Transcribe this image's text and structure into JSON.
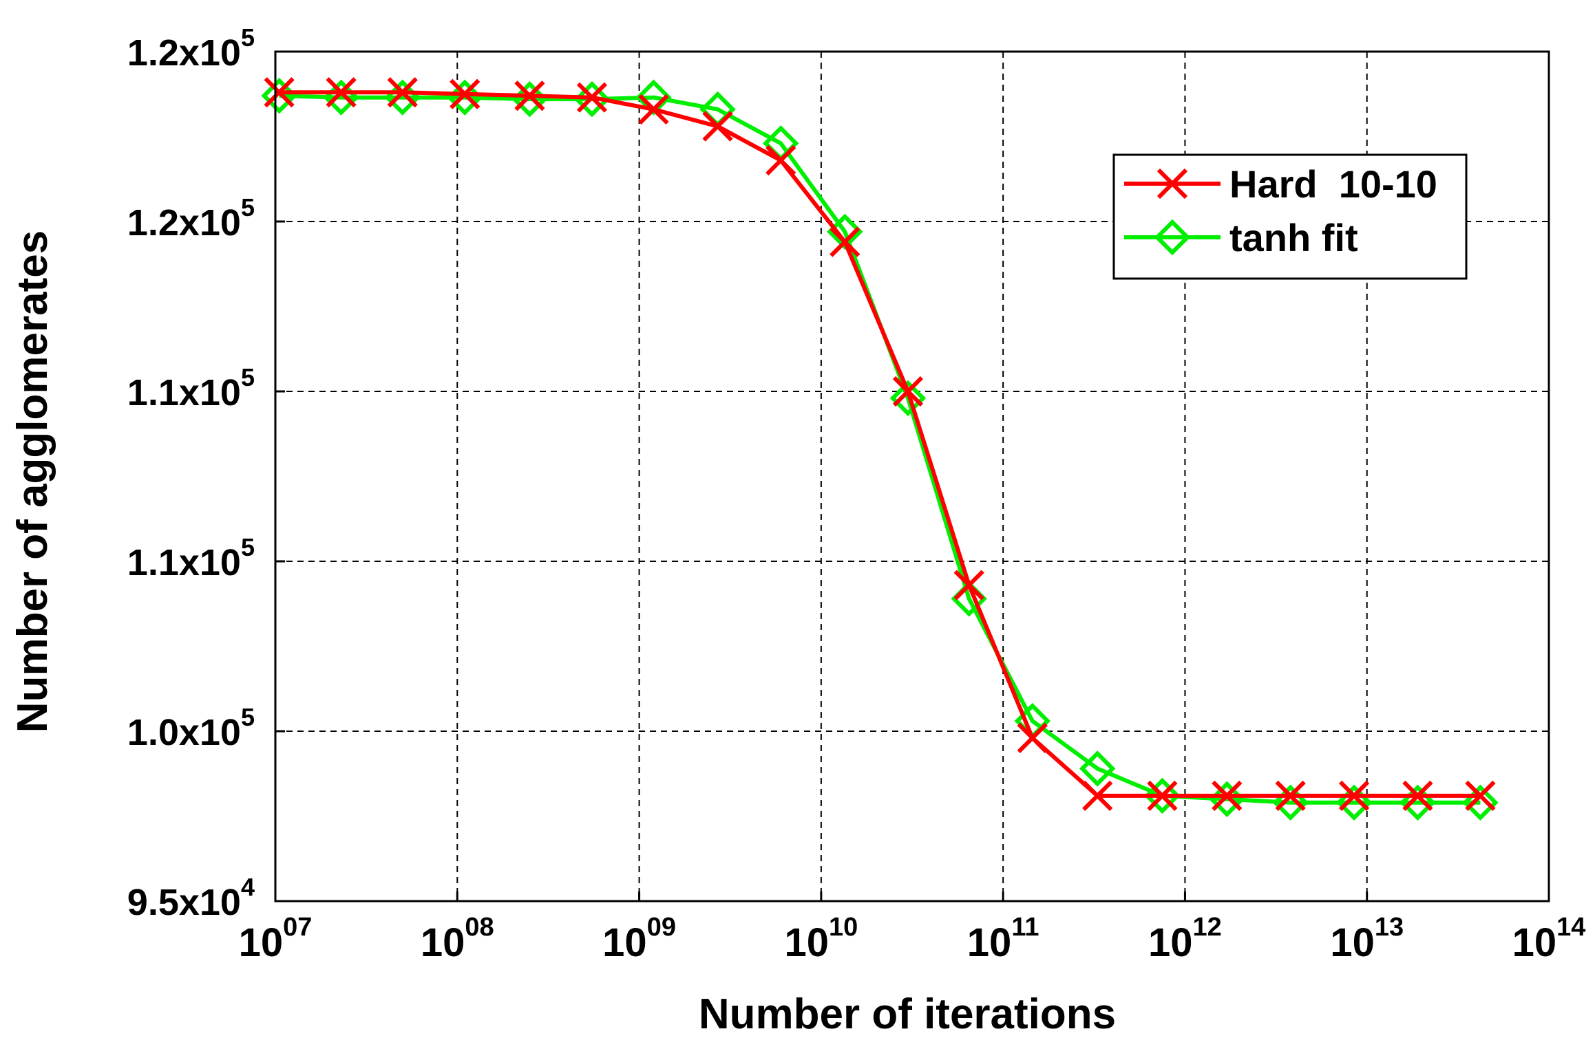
{
  "chart_data": {
    "type": "line",
    "xlabel": "Number of iterations",
    "ylabel": "Number of agglomerates",
    "x_scale": "log",
    "xlim": [
      10000000,
      100000000000000
    ],
    "ylim": [
      95000,
      120000
    ],
    "grid": true,
    "grid_style": "dashed",
    "legend_position": "top-right",
    "x_ticks": [
      {
        "base": "10",
        "exp": "07",
        "value": 10000000
      },
      {
        "base": "10",
        "exp": "08",
        "value": 100000000
      },
      {
        "base": "10",
        "exp": "09",
        "value": 1000000000
      },
      {
        "base": "10",
        "exp": "10",
        "value": 10000000000
      },
      {
        "base": "10",
        "exp": "11",
        "value": 100000000000
      },
      {
        "base": "10",
        "exp": "12",
        "value": 1000000000000
      },
      {
        "base": "10",
        "exp": "13",
        "value": 10000000000000
      },
      {
        "base": "10",
        "exp": "14",
        "value": 100000000000000
      }
    ],
    "y_ticks": [
      {
        "mantissa": "9.5x10",
        "exp": "4",
        "value": 95000
      },
      {
        "mantissa": "1.0x10",
        "exp": "5",
        "value": 100000
      },
      {
        "mantissa": "1.1x10",
        "exp": "5",
        "value": 105000
      },
      {
        "mantissa": "1.1x10",
        "exp": "5",
        "value": 110000
      },
      {
        "mantissa": "1.2x10",
        "exp": "5",
        "value": 115000
      },
      {
        "mantissa": "1.2x10",
        "exp": "5",
        "value": 120000
      }
    ],
    "series": [
      {
        "name": "Hard  10-10",
        "color": "#ff0000",
        "marker": "x",
        "x": [
          10500000.0,
          23000000.0,
          50000000.0,
          110000000.0,
          250000000.0,
          550000000.0,
          1200000000.0,
          2700000000.0,
          6000000000.0,
          13500000000.0,
          30000000000.0,
          65000000000.0,
          145000000000.0,
          330000000000.0,
          750000000000.0,
          1700000000000.0,
          3800000000000.0,
          8500000000000.0,
          19000000000000.0,
          42000000000000.0
        ],
        "y": [
          118800,
          118800,
          118800,
          118750,
          118700,
          118650,
          118300,
          117800,
          116800,
          114400,
          110000,
          104300,
          99800,
          98100,
          98100,
          98100,
          98100,
          98100,
          98100,
          98100
        ]
      },
      {
        "name": "tanh fit",
        "color": "#00ee00",
        "marker": "diamond",
        "x": [
          10500000.0,
          23000000.0,
          50000000.0,
          110000000.0,
          250000000.0,
          550000000.0,
          1200000000.0,
          2700000000.0,
          6000000000.0,
          13500000000.0,
          30000000000.0,
          65000000000.0,
          145000000000.0,
          330000000000.0,
          750000000000.0,
          1700000000000.0,
          3800000000000.0,
          8500000000000.0,
          19000000000000.0,
          42000000000000.0
        ],
        "y": [
          118700,
          118650,
          118650,
          118650,
          118600,
          118600,
          118650,
          118300,
          117300,
          114700,
          109800,
          103900,
          100300,
          98900,
          98100,
          98000,
          97900,
          97900,
          97900,
          97900
        ]
      }
    ]
  }
}
